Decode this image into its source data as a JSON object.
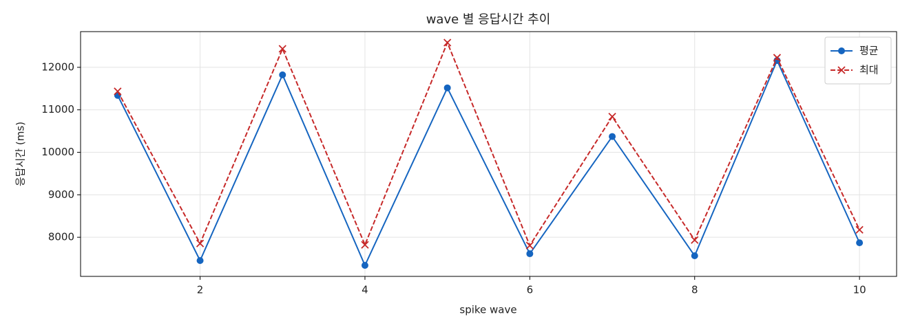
{
  "chart_data": {
    "type": "line",
    "title": "wave 별 응답시간 추이",
    "xlabel": "spike wave",
    "ylabel": "응답시간 (ms)",
    "x": [
      1,
      2,
      3,
      4,
      5,
      6,
      7,
      8,
      9,
      10
    ],
    "series": [
      {
        "name": "평균",
        "color": "#1565c0",
        "marker": "circle",
        "linestyle": "solid",
        "values": [
          11340,
          7452,
          11823,
          7339,
          11516,
          7613,
          10371,
          7565,
          12161,
          7871
        ]
      },
      {
        "name": "최대",
        "color": "#c62828",
        "marker": "x",
        "linestyle": "dashed",
        "values": [
          11435,
          7855,
          12435,
          7823,
          12581,
          7806,
          10839,
          7935,
          12226,
          8177
        ]
      }
    ],
    "xlim": [
      0.55,
      10.45
    ],
    "ylim": [
      7080,
      12840
    ],
    "xticks": [
      2,
      4,
      6,
      8,
      10
    ],
    "yticks": [
      8000,
      9000,
      10000,
      11000,
      12000
    ],
    "grid": true,
    "legend": "upper right"
  }
}
